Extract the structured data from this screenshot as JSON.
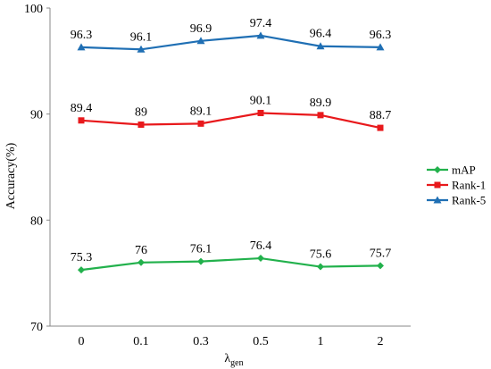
{
  "chart_data": {
    "type": "line",
    "categories": [
      "0",
      "0.1",
      "0.3",
      "0.5",
      "1",
      "2"
    ],
    "series": [
      {
        "name": "mAP",
        "values": [
          75.3,
          76,
          76.1,
          76.4,
          75.6,
          75.7
        ],
        "labels": [
          "75.3",
          "76",
          "76.1",
          "76.4",
          "75.6",
          "75.7"
        ],
        "color": "#22b14c",
        "marker": "diamond"
      },
      {
        "name": "Rank-1",
        "values": [
          89.4,
          89,
          89.1,
          90.1,
          89.9,
          88.7
        ],
        "labels": [
          "89.4",
          "89",
          "89.1",
          "90.1",
          "89.9",
          "88.7"
        ],
        "color": "#e8191c",
        "marker": "square"
      },
      {
        "name": "Rank-5",
        "values": [
          96.3,
          96.1,
          96.9,
          97.4,
          96.4,
          96.3
        ],
        "labels": [
          "96.3",
          "96.1",
          "96.9",
          "97.4",
          "96.4",
          "96.3"
        ],
        "color": "#1f6fb4",
        "marker": "triangle"
      }
    ],
    "xlabel_main": "λ",
    "xlabel_sub": "gen",
    "ylabel": "Accuracy(%)",
    "ylim": [
      70,
      100
    ],
    "yticks": [
      "70",
      "80",
      "90",
      "100"
    ],
    "grid": false,
    "legend_position": "right"
  }
}
